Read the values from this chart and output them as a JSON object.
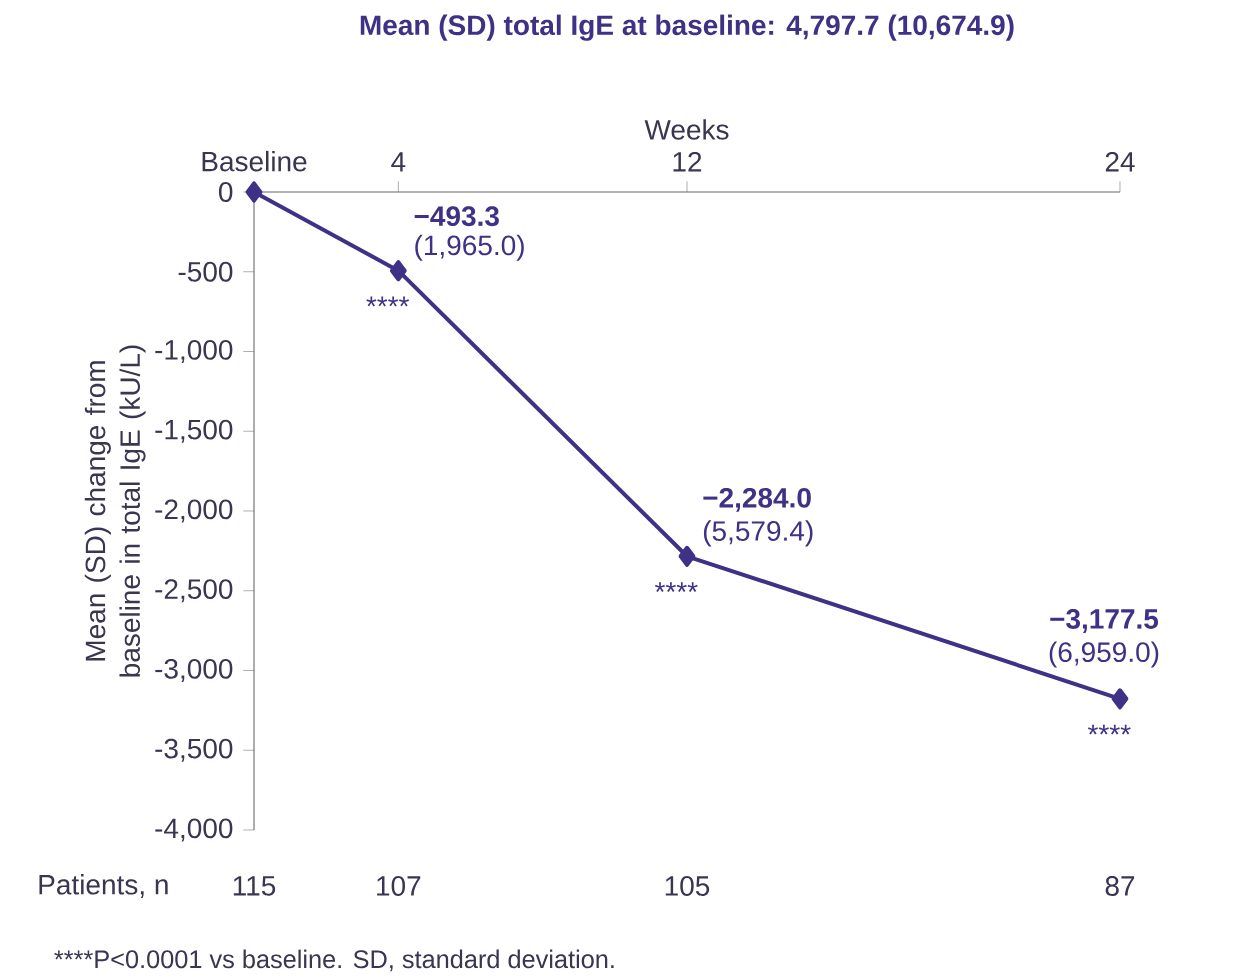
{
  "chart_data": {
    "type": "line",
    "title": "Mean (SD) total IgE at baseline: 4,797.7 (10,674.9)",
    "xlabel": "Weeks",
    "ylabel": "Mean (SD) change from baseline in total IgE  (kU/L)",
    "x": [
      0,
      4,
      12,
      24
    ],
    "series": [
      {
        "color": "#3f3185",
        "values": [
          0,
          -493.3,
          -2284.0,
          -3177.5
        ],
        "value_labels": [
          null,
          "−493.3",
          "−2,284.0",
          "−3,177.5"
        ]
      }
    ],
    "marker": "diamond",
    "line_style": "solid",
    "xlim": [
      0,
      24
    ],
    "xticks": [
      {
        "value": 0,
        "label": "Baseline"
      },
      4,
      12,
      24
    ],
    "ylim": [
      -4000,
      0
    ],
    "yticks": [
      {
        "value": -4000,
        "label": "-4,000"
      },
      {
        "value": -3500,
        "label": "-3,500"
      },
      {
        "value": -3000,
        "label": "-3,000"
      },
      {
        "value": -2500,
        "label": "-2,500"
      },
      {
        "value": -2000,
        "label": "-2,000"
      },
      {
        "value": -1500,
        "label": "-1,500"
      },
      {
        "value": -1000,
        "label": "-1,000"
      },
      {
        "value": -500,
        "label": "-500"
      },
      {
        "value": 0,
        "label": "0"
      }
    ],
    "annotations": [
      {
        "text": "(1,965.0)",
        "x": 4,
        "y": -493.3
      },
      {
        "text": "****",
        "x": 4,
        "y": -493.3
      },
      {
        "text": "(5,579.4)",
        "x": 12,
        "y": -2284.0
      },
      {
        "text": "****",
        "x": 12,
        "y": -2284.0
      },
      {
        "text": "(6,959.0)",
        "x": 24,
        "y": -3177.5
      },
      {
        "text": "****",
        "x": 24,
        "y": -3177.5
      },
      "Patients, n",
      "115",
      "107",
      "105",
      "87",
      "****P<0.0001 vs baseline. SD, standard deviation."
    ]
  }
}
